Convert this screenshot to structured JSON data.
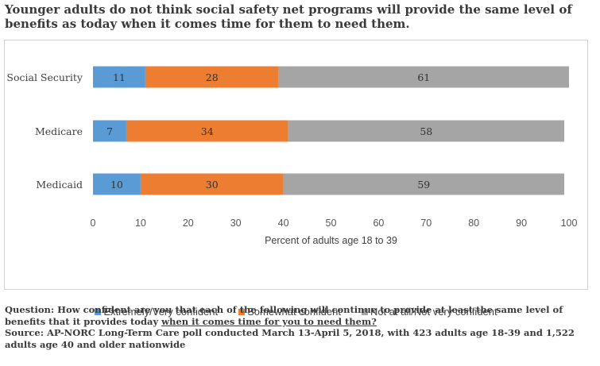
{
  "title": "Younger adults do not think social safety net programs will provide the same level of benefits as today when it comes time for them to need them.",
  "chart_data": {
    "type": "bar",
    "orientation": "horizontal",
    "stacked": true,
    "categories": [
      "Social Security",
      "Medicare",
      "Medicaid"
    ],
    "series": [
      {
        "name": "Extremely/Very confident",
        "values": [
          11,
          7,
          10
        ],
        "color": "#5b9bd5"
      },
      {
        "name": "Somewhat confident",
        "values": [
          28,
          34,
          30
        ],
        "color": "#ed7d31"
      },
      {
        "name": "Not at all/Not very confident",
        "values": [
          61,
          58,
          59
        ],
        "color": "#a5a5a5"
      }
    ],
    "xlabel": "Percent of adults age 18 to 39",
    "xlim": [
      0,
      100
    ],
    "xticks": [
      0,
      10,
      20,
      30,
      40,
      50,
      60,
      70,
      80,
      90,
      100
    ],
    "grid": false,
    "legend": "bottom"
  },
  "notes": {
    "question_prefix": "Question: How confident are you that each of the following will continue to provide at least the same level of benefits that it provides today ",
    "question_underlined": "when it comes time for you to need them?",
    "source": "Source: AP-NORC Long-Term Care poll conducted March 13-April 5, 2018, with 423 adults age 18-39 and 1,522 adults age 40 and older nationwide"
  }
}
